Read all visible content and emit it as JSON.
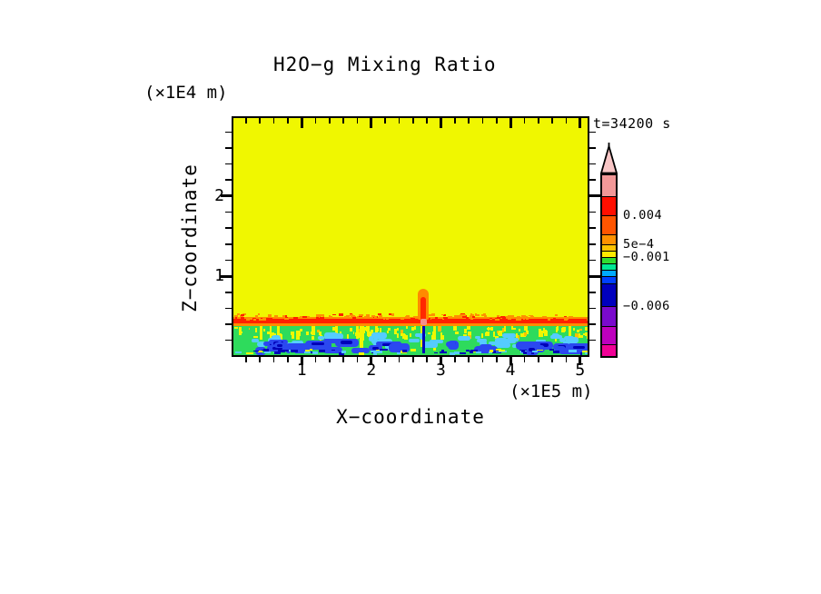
{
  "palette": {
    "page_background": "#FFFFFF",
    "axis_color": "#000000",
    "field_yellow": "#F0F700",
    "band_red": "#FF2000",
    "band_orange": "#FF8C00",
    "fringe_orange": "#FF9100",
    "mixed_green": "#2EDB5C",
    "patch_cyan": "#55CCFF",
    "blob_blue": "#2B48F0",
    "deep_navy": "#0000B8",
    "fleck_yellow": "#F0F700",
    "fleck_amber": "#FFC100",
    "plume_orange": "#FF8A00",
    "plume_red": "#FF2800",
    "plume_salmon": "#F2908C"
  },
  "chart_data": {
    "type": "heatmap",
    "title": "H2O−g Mixing Ratio",
    "time_label": "t=34200 s",
    "xlabel": "X−coordinate",
    "x_unit": "(×1E5 m)",
    "ylabel": "Z−coordinate",
    "y_unit": "(×1E4 m)",
    "x_axis": {
      "range": [
        0,
        5.12
      ],
      "major_ticks": [
        1,
        2,
        3,
        4,
        5
      ],
      "tick_labels": [
        "1",
        "2",
        "3",
        "4",
        "5"
      ],
      "minor_step": 0.2
    },
    "z_axis": {
      "range": [
        0,
        3.0
      ],
      "major_ticks": [
        1,
        2
      ],
      "tick_labels": [
        "1",
        "2"
      ],
      "minor_step": 0.2
    },
    "grid": false,
    "legend_position": "right",
    "features": [
      {
        "name": "upper-domain",
        "type": "uniform-region",
        "z_range": [
          0.45,
          3.0
        ],
        "x_range": [
          0,
          5.12
        ],
        "color_key": "field_yellow"
      },
      {
        "name": "surface-warm-band",
        "type": "horizontal-band",
        "z_center": 0.43,
        "x_range": [
          0,
          5.12
        ],
        "color_keys": [
          "fringe_orange",
          "band_red",
          "band_orange"
        ]
      },
      {
        "name": "mixed-boundary-layer",
        "type": "mottled-band",
        "z_range": [
          0,
          0.37
        ],
        "x_range": [
          0,
          5.12
        ],
        "color_keys": [
          "mixed_green",
          "patch_cyan",
          "blob_blue",
          "deep_navy",
          "fleck_yellow"
        ]
      },
      {
        "name": "plume",
        "type": "vertical-plume",
        "x_center": 2.75,
        "z_range": [
          0.43,
          0.85
        ],
        "color_keys": [
          "plume_orange",
          "plume_red",
          "plume_salmon"
        ]
      },
      {
        "name": "downdraft-line",
        "type": "vertical-line",
        "x_center": 2.76,
        "z_range": [
          0.0,
          0.4
        ],
        "color_key": "deep_navy"
      }
    ],
    "colorbar": {
      "arrow_color": "#F8C6C6",
      "segments": [
        {
          "color": "#F29898",
          "weight": 23
        },
        {
          "color": "#FF0F00",
          "weight": 21
        },
        {
          "color": "#FF5500",
          "weight": 21
        },
        {
          "color": "#FF9100",
          "weight": 11
        },
        {
          "color": "#FFC300",
          "weight": 7
        },
        {
          "color": "#FFEB00",
          "weight": 7
        },
        {
          "color": "#30DC30",
          "weight": 7
        },
        {
          "color": "#00E894",
          "weight": 7
        },
        {
          "color": "#00AAFF",
          "weight": 7
        },
        {
          "color": "#0041FF",
          "weight": 8
        },
        {
          "color": "#0000BE",
          "weight": 25
        },
        {
          "color": "#7A0ACD",
          "weight": 22
        },
        {
          "color": "#BE00BE",
          "weight": 20
        },
        {
          "color": "#F00096",
          "weight": 13
        }
      ],
      "labels": [
        {
          "text": "0.004",
          "boundary_after": 1
        },
        {
          "text": "5e−4",
          "boundary_after": 3
        },
        {
          "text": "−0.001",
          "boundary_after": 5
        },
        {
          "text": "−0.006",
          "boundary_after": 10
        }
      ]
    }
  }
}
